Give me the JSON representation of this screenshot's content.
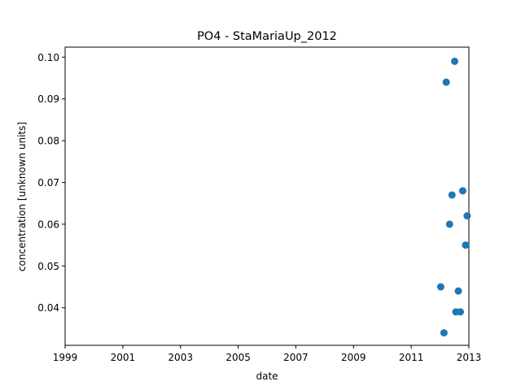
{
  "chart_data": {
    "type": "scatter",
    "title": "PO4 - StaMariaUp_2012",
    "xlabel": "date",
    "ylabel": "concentration [unknown units]",
    "xlim": [
      "1999-01-01",
      "2013-01-01"
    ],
    "ylim": [
      0.031,
      0.1024
    ],
    "x_ticks": [
      "1999",
      "2001",
      "2003",
      "2005",
      "2007",
      "2009",
      "2011",
      "2013"
    ],
    "y_ticks": [
      "0.04",
      "0.05",
      "0.06",
      "0.07",
      "0.08",
      "0.09",
      "0.10"
    ],
    "grid": false,
    "legend": "none",
    "marker_color": "#1f77b4",
    "series": [
      {
        "points": [
          {
            "x": "2012-01-10",
            "y": 0.045
          },
          {
            "x": "2012-02-20",
            "y": 0.034
          },
          {
            "x": "2012-03-20",
            "y": 0.094
          },
          {
            "x": "2012-05-01",
            "y": 0.06
          },
          {
            "x": "2012-06-01",
            "y": 0.067
          },
          {
            "x": "2012-07-05",
            "y": 0.099
          },
          {
            "x": "2012-07-20",
            "y": 0.039
          },
          {
            "x": "2012-08-20",
            "y": 0.044
          },
          {
            "x": "2012-09-15",
            "y": 0.039
          },
          {
            "x": "2012-10-15",
            "y": 0.068
          },
          {
            "x": "2012-11-20",
            "y": 0.055
          },
          {
            "x": "2012-12-10",
            "y": 0.062
          }
        ]
      }
    ]
  }
}
